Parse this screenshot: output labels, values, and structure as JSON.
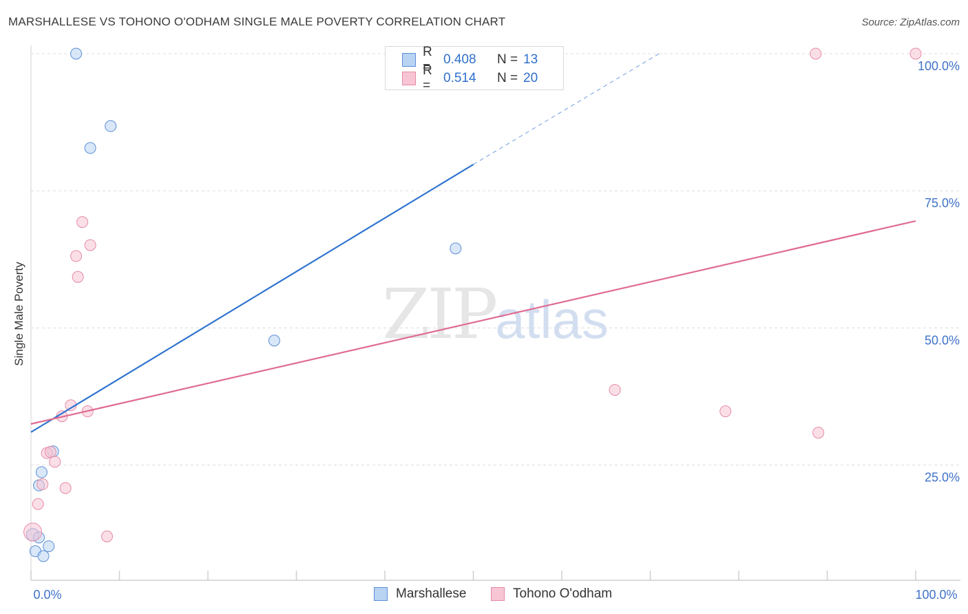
{
  "header": {
    "title": "MARSHALLESE VS TOHONO O'ODHAM SINGLE MALE POVERTY CORRELATION CHART",
    "source": "Source: ZipAtlas.com"
  },
  "legend": {
    "rows": [
      {
        "r_label": "R =",
        "r_value": "0.408",
        "n_label": "N =",
        "n_value": "13"
      },
      {
        "r_label": "R =",
        "r_value": "0.514",
        "n_label": "N =",
        "n_value": "20"
      }
    ]
  },
  "watermark": {
    "zip": "ZIP",
    "atlas": "atlas"
  },
  "colors": {
    "blue_fill": "#b9d3f3",
    "blue_stroke": "#5b8ed6",
    "blue_line": "#2f74d0",
    "pink_fill": "#f7c5d4",
    "pink_stroke": "#e58aa6",
    "pink_line": "#e06b92",
    "grid": "#dcdcdc",
    "tick_text": "#3f72c9"
  },
  "chart_data": {
    "type": "scatter",
    "title": "MARSHALLESE VS TOHONO O'ODHAM SINGLE MALE POVERTY CORRELATION CHART",
    "xlabel": "",
    "ylabel": "Single Male Poverty",
    "xlim": [
      0,
      100
    ],
    "ylim": [
      4,
      101
    ],
    "x_tick_labels": [
      "0.0%",
      "100.0%"
    ],
    "y_ticks": [
      25,
      50,
      75,
      100
    ],
    "y_tick_labels": [
      "25.0%",
      "50.0%",
      "75.0%",
      "100.0%"
    ],
    "grid": true,
    "series": [
      {
        "name": "Marshallese",
        "color": "blue",
        "points": [
          {
            "x": 5.1,
            "y": 100,
            "r": 8
          },
          {
            "x": 9.0,
            "y": 86.8,
            "r": 8
          },
          {
            "x": 6.7,
            "y": 82.8,
            "r": 8
          },
          {
            "x": 48.0,
            "y": 64.5,
            "r": 8
          },
          {
            "x": 27.5,
            "y": 47.7,
            "r": 8
          },
          {
            "x": 2.5,
            "y": 27.5,
            "r": 8
          },
          {
            "x": 1.2,
            "y": 23.7,
            "r": 8
          },
          {
            "x": 0.9,
            "y": 21.3,
            "r": 8
          },
          {
            "x": 0.2,
            "y": 12.3,
            "r": 9
          },
          {
            "x": 0.9,
            "y": 11.8,
            "r": 8
          },
          {
            "x": 2.0,
            "y": 10.2,
            "r": 8
          },
          {
            "x": 0.5,
            "y": 9.3,
            "r": 8
          },
          {
            "x": 1.4,
            "y": 8.4,
            "r": 8
          }
        ],
        "trend": {
          "x0": 0,
          "y0": 31.0,
          "x1": 50,
          "y1": 79.8,
          "dashed_to_x": 71,
          "dashed_to_y": 100
        }
      },
      {
        "name": "Tohono O'odham",
        "color": "pink",
        "points": [
          {
            "x": 88.7,
            "y": 100,
            "r": 8
          },
          {
            "x": 100,
            "y": 100,
            "r": 8
          },
          {
            "x": 5.8,
            "y": 69.3,
            "r": 8
          },
          {
            "x": 6.7,
            "y": 65.1,
            "r": 8
          },
          {
            "x": 5.1,
            "y": 63.1,
            "r": 8
          },
          {
            "x": 5.3,
            "y": 59.3,
            "r": 8
          },
          {
            "x": 66.0,
            "y": 38.7,
            "r": 8
          },
          {
            "x": 4.5,
            "y": 35.9,
            "r": 8
          },
          {
            "x": 6.4,
            "y": 34.8,
            "r": 8
          },
          {
            "x": 78.5,
            "y": 34.8,
            "r": 8
          },
          {
            "x": 3.5,
            "y": 33.9,
            "r": 8
          },
          {
            "x": 89.0,
            "y": 30.9,
            "r": 8
          },
          {
            "x": 1.8,
            "y": 27.2,
            "r": 8
          },
          {
            "x": 2.2,
            "y": 27.4,
            "r": 8
          },
          {
            "x": 2.7,
            "y": 25.6,
            "r": 8
          },
          {
            "x": 1.3,
            "y": 21.5,
            "r": 8
          },
          {
            "x": 3.9,
            "y": 20.8,
            "r": 8
          },
          {
            "x": 0.8,
            "y": 17.9,
            "r": 8
          },
          {
            "x": 0.2,
            "y": 12.8,
            "r": 13
          },
          {
            "x": 8.6,
            "y": 12.0,
            "r": 8
          }
        ],
        "trend": {
          "x0": 0,
          "y0": 32.5,
          "x1": 100,
          "y1": 69.5
        }
      }
    ]
  },
  "bottom_legend": {
    "items": [
      {
        "label": "Marshallese"
      },
      {
        "label": "Tohono O'odham"
      }
    ]
  }
}
